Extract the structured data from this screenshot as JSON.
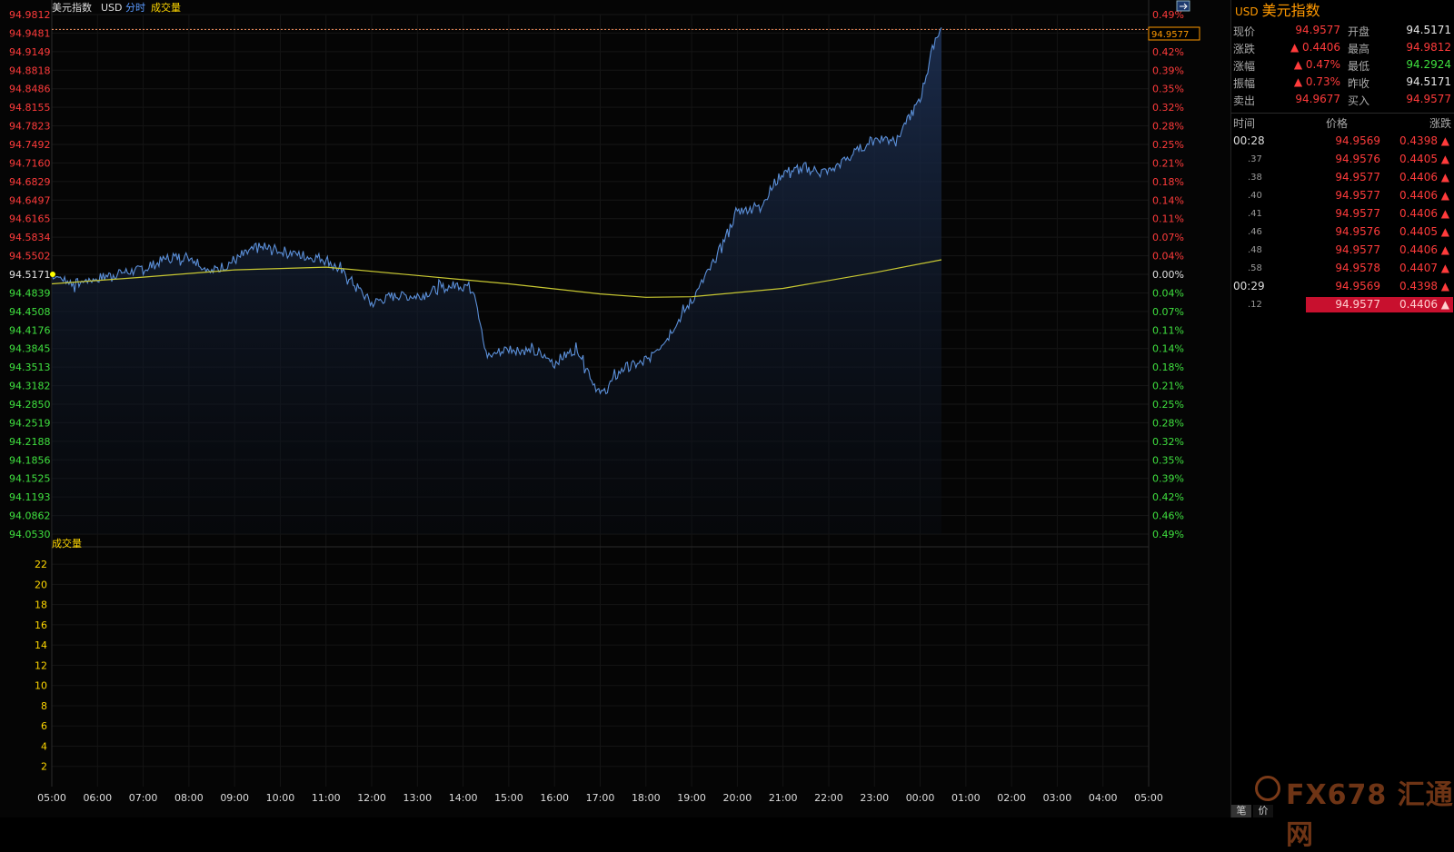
{
  "header": {
    "name": "美元指数",
    "code": "USD",
    "mode_fenshi": "分时",
    "mode_volume": "成交量"
  },
  "price_axis": [
    "94.9812",
    "94.9481",
    "94.9149",
    "94.8818",
    "94.8486",
    "94.8155",
    "94.7823",
    "94.7492",
    "94.7160",
    "94.6829",
    "94.6497",
    "94.6165",
    "94.5834",
    "94.5502",
    "94.5171",
    "94.4839",
    "94.4508",
    "94.4176",
    "94.3845",
    "94.3513",
    "94.3182",
    "94.2850",
    "94.2519",
    "94.2188",
    "94.1856",
    "94.1525",
    "94.1193",
    "94.0862",
    "94.0530"
  ],
  "pct_axis": [
    "0.49%",
    "0.46%",
    "0.42%",
    "0.39%",
    "0.35%",
    "0.32%",
    "0.28%",
    "0.25%",
    "0.21%",
    "0.18%",
    "0.14%",
    "0.11%",
    "0.07%",
    "0.04%",
    "0.00%",
    "0.04%",
    "0.07%",
    "0.11%",
    "0.14%",
    "0.18%",
    "0.21%",
    "0.25%",
    "0.28%",
    "0.32%",
    "0.35%",
    "0.39%",
    "0.42%",
    "0.46%",
    "0.49%"
  ],
  "current_price_tag": "94.9577",
  "volume_label": "成交量",
  "volume_axis": [
    "22",
    "20",
    "18",
    "16",
    "14",
    "12",
    "10",
    "8",
    "6",
    "4",
    "2"
  ],
  "time_axis": [
    "05:00",
    "06:00",
    "07:00",
    "08:00",
    "09:00",
    "10:00",
    "11:00",
    "12:00",
    "13:00",
    "14:00",
    "15:00",
    "16:00",
    "17:00",
    "18:00",
    "19:00",
    "20:00",
    "21:00",
    "22:00",
    "23:00",
    "00:00",
    "01:00",
    "02:00",
    "03:00",
    "04:00",
    "05:00"
  ],
  "colors": {
    "price_line": "#5b8fd8",
    "avg_line": "#c8c832",
    "up": "#ff3b3b",
    "down": "#3fe03f",
    "accent": "#ff9900"
  },
  "chart_data": {
    "type": "line",
    "title": "美元指数 USD 分时",
    "prev_close": 94.5171,
    "ylim": [
      94.053,
      94.9812
    ],
    "x_range": [
      "05:00",
      "05:00"
    ],
    "series": [
      {
        "name": "price",
        "x": [
          "05:00",
          "05:30",
          "06:00",
          "06:30",
          "07:00",
          "07:30",
          "08:00",
          "08:30",
          "09:00",
          "09:30",
          "10:00",
          "10:30",
          "11:00",
          "11:30",
          "12:00",
          "12:30",
          "13:00",
          "13:30",
          "14:00",
          "14:15",
          "14:30",
          "15:00",
          "15:30",
          "16:00",
          "16:30",
          "17:00",
          "17:30",
          "18:00",
          "18:30",
          "19:00",
          "19:30",
          "20:00",
          "20:30",
          "21:00",
          "21:30",
          "22:00",
          "22:30",
          "23:00",
          "23:30",
          "00:00",
          "00:20",
          "00:28"
        ],
        "values": [
          94.517,
          94.5,
          94.51,
          94.52,
          94.525,
          94.545,
          94.55,
          94.522,
          94.542,
          94.565,
          94.56,
          94.55,
          94.545,
          94.51,
          94.465,
          94.48,
          94.478,
          94.492,
          94.5,
          94.49,
          94.37,
          94.385,
          94.38,
          94.36,
          94.385,
          94.3,
          94.35,
          94.36,
          94.41,
          94.47,
          94.54,
          94.63,
          94.64,
          94.7,
          94.705,
          94.7,
          94.73,
          94.76,
          94.76,
          94.83,
          94.94,
          94.958
        ]
      },
      {
        "name": "average",
        "x": [
          "05:00",
          "07:00",
          "09:00",
          "11:00",
          "13:00",
          "15:00",
          "17:00",
          "18:00",
          "19:00",
          "21:00",
          "23:00",
          "00:28"
        ],
        "values": [
          94.5,
          94.512,
          94.525,
          94.53,
          94.515,
          94.5,
          94.482,
          94.476,
          94.477,
          94.492,
          94.52,
          94.543
        ]
      }
    ]
  },
  "quote": {
    "rows": [
      {
        "l1": "现价",
        "v1": "94.9577",
        "c1": "red",
        "l2": "开盘",
        "v2": "94.5171",
        "c2": "white"
      },
      {
        "l1": "涨跌",
        "v1": "▲ 0.4406",
        "c1": "red",
        "l2": "最高",
        "v2": "94.9812",
        "c2": "red"
      },
      {
        "l1": "涨幅",
        "v1": "▲ 0.47%",
        "c1": "red",
        "l2": "最低",
        "v2": "94.2924",
        "c2": "green"
      },
      {
        "l1": "振幅",
        "v1": "▲ 0.73%",
        "c1": "red",
        "l2": "昨收",
        "v2": "94.5171",
        "c2": "white"
      },
      {
        "l1": "卖出",
        "v1": "94.9677",
        "c1": "red",
        "l2": "买入",
        "v2": "94.9577",
        "c2": "red"
      }
    ]
  },
  "ticks_header": {
    "time": "时间",
    "price": "价格",
    "change": "涨跌"
  },
  "ticks": [
    {
      "time": "00:28",
      "price": "94.9569",
      "change": "0.4398 ▲",
      "major": true
    },
    {
      "time": ".37",
      "price": "94.9576",
      "change": "0.4405 ▲",
      "major": false
    },
    {
      "time": ".38",
      "price": "94.9577",
      "change": "0.4406 ▲",
      "major": false
    },
    {
      "time": ".40",
      "price": "94.9577",
      "change": "0.4406 ▲",
      "major": false
    },
    {
      "time": ".41",
      "price": "94.9577",
      "change": "0.4406 ▲",
      "major": false
    },
    {
      "time": ".46",
      "price": "94.9576",
      "change": "0.4405 ▲",
      "major": false
    },
    {
      "time": ".48",
      "price": "94.9577",
      "change": "0.4406 ▲",
      "major": false
    },
    {
      "time": ".58",
      "price": "94.9578",
      "change": "0.4407 ▲",
      "major": false
    },
    {
      "time": "00:29",
      "price": "94.9569",
      "change": "0.4398 ▲",
      "major": true
    },
    {
      "time": ".12",
      "price": "94.9577",
      "change": "0.4406 ▲",
      "major": false,
      "selected": true
    }
  ],
  "bottom_tabs": [
    "笔",
    "价"
  ],
  "watermark": "FX678 汇通网"
}
